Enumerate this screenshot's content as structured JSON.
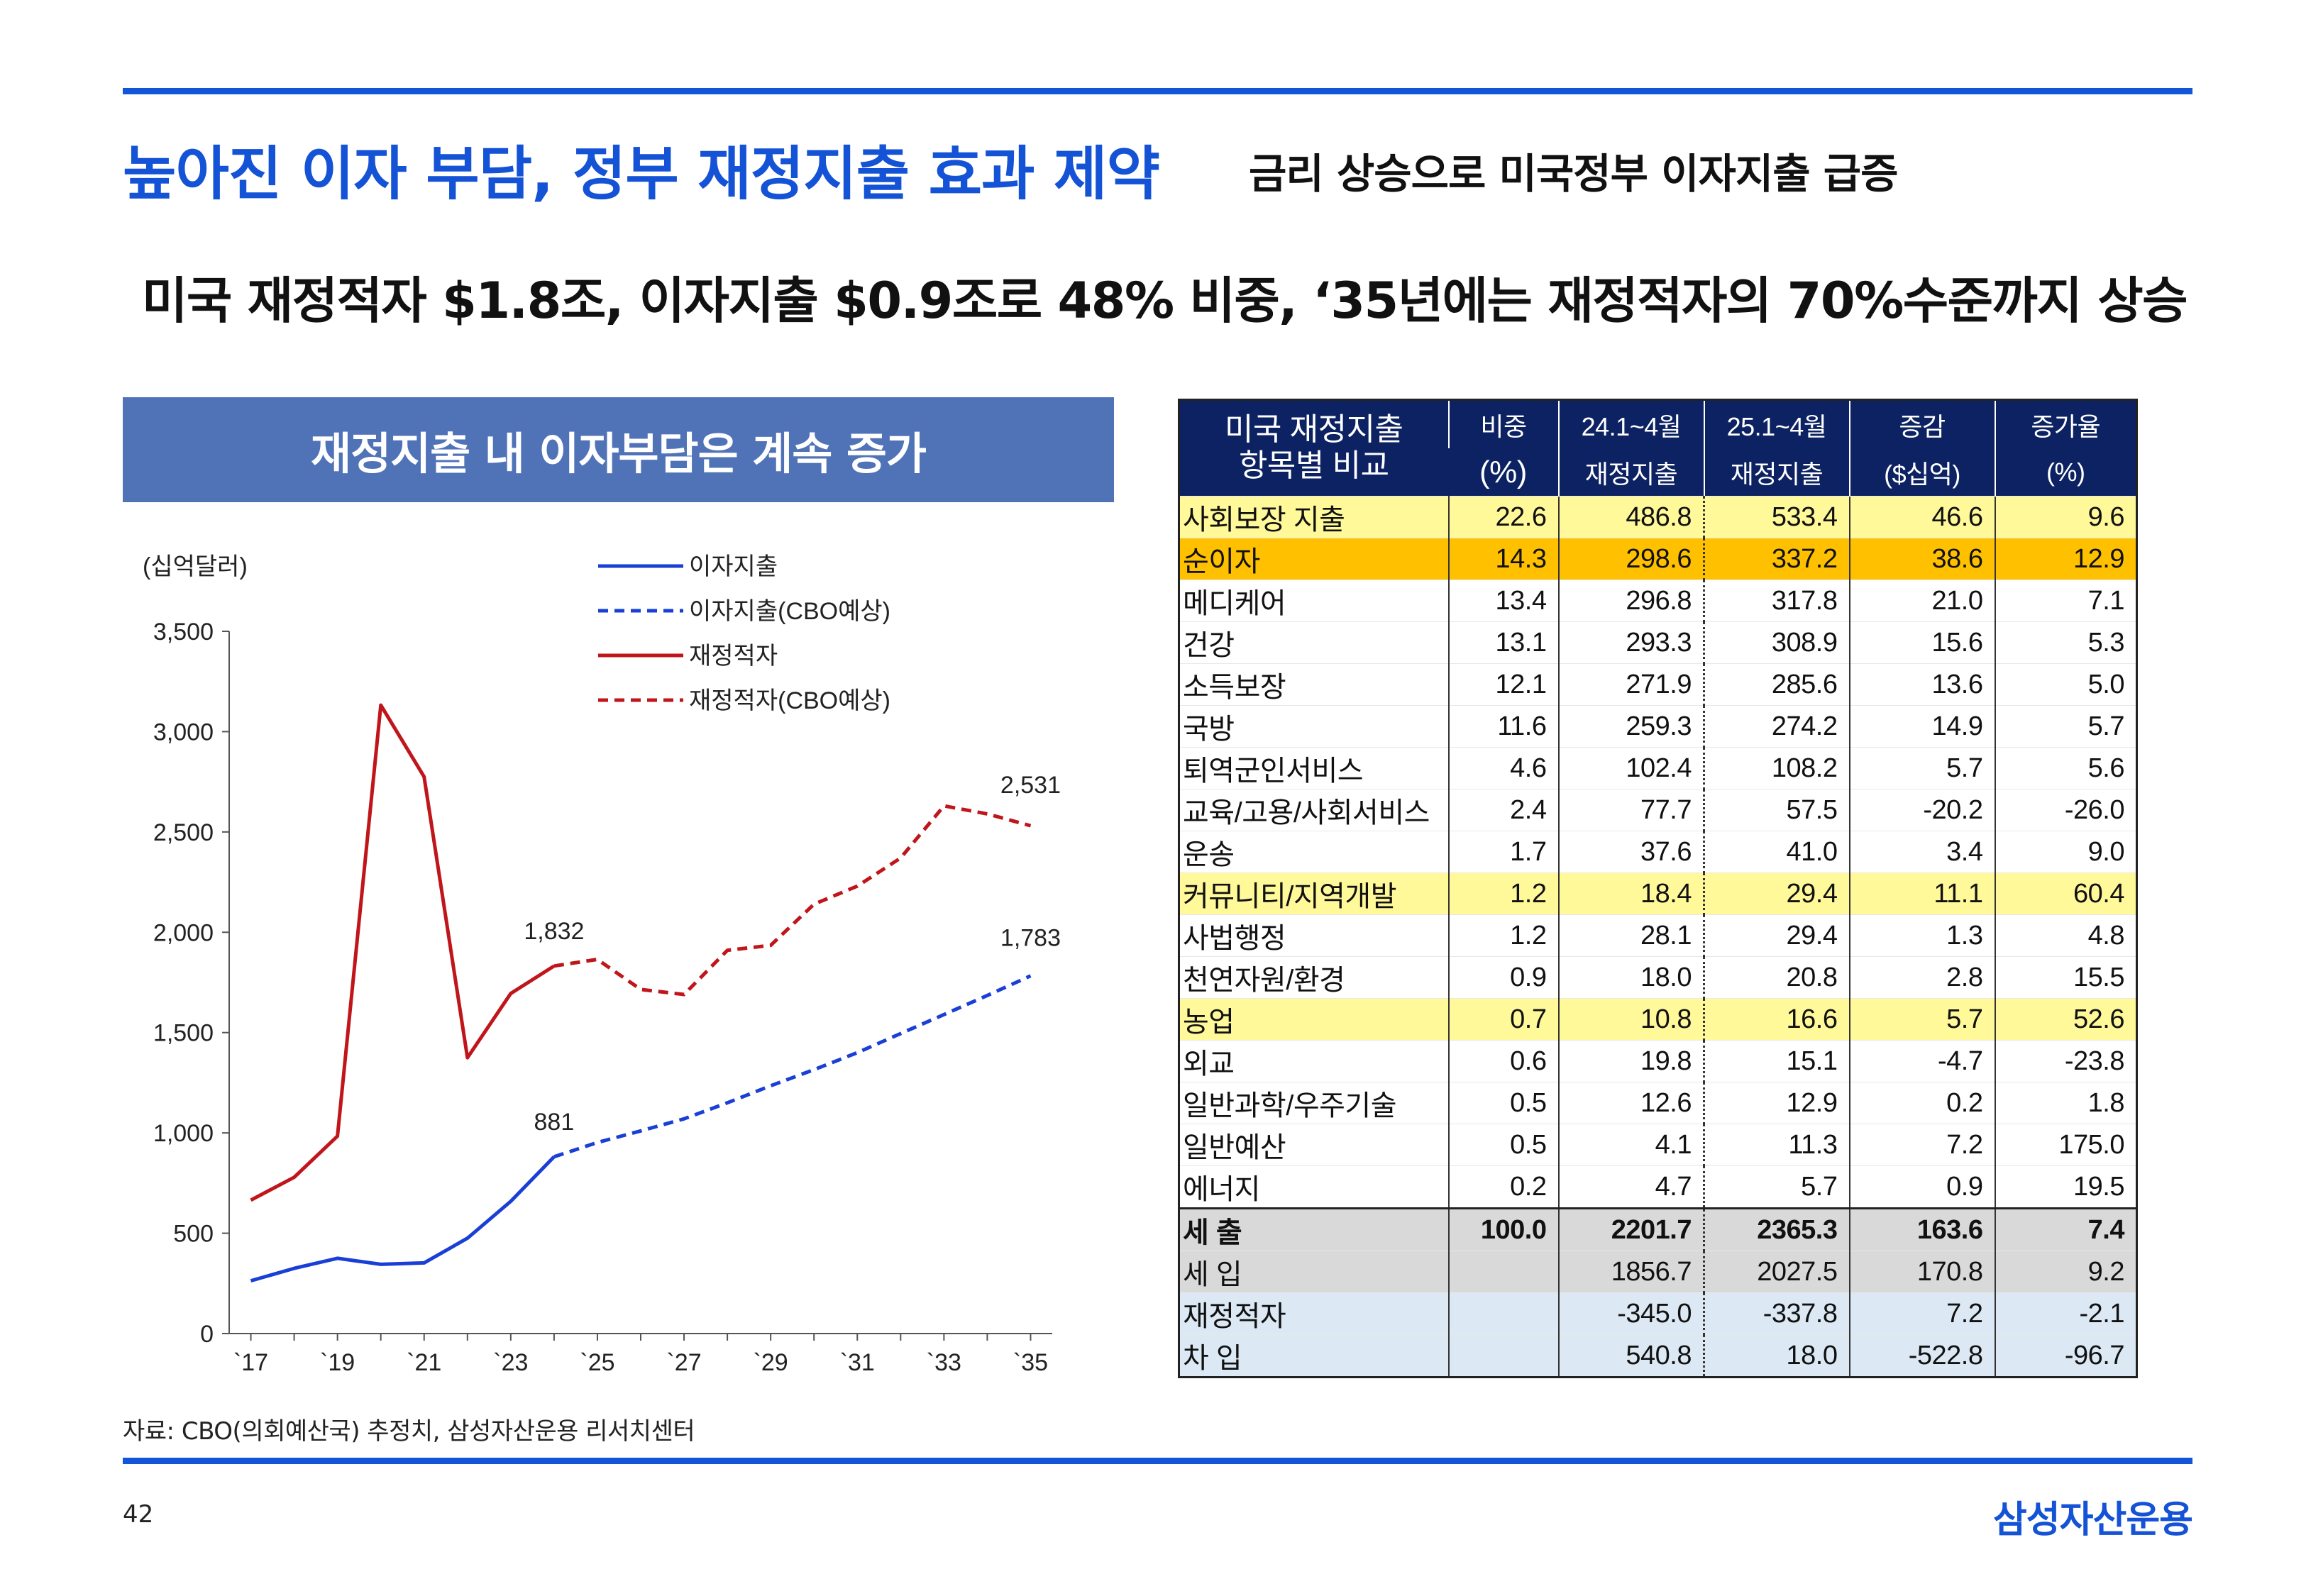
{
  "page": {
    "title": "높아진 이자 부담, 정부 재정지출 효과 제약",
    "subtitle": "금리 상승으로 미국정부 이자지출 급증",
    "headline": "미국 재정적자 $1.8조, 이자지출 $0.9조로 48% 비중, ‘35년에는 재정적자의 70%수준까지 상승",
    "chart_banner": "재정지출 내 이자부담은 계속 증가",
    "source_note": "자료: CBO(의회예산국) 추정치, 삼성자산운용 리서치센터",
    "page_number": "42",
    "brand": "삼성자산운용",
    "colors": {
      "accent": "#1452d6",
      "banner": "#5073b7",
      "table_header": "#0d2262",
      "interest": "#1a3fd6",
      "deficit": "#c0161b"
    }
  },
  "chart_data": {
    "type": "line",
    "unit_label": "(십억달러)",
    "ylim": [
      0,
      3500
    ],
    "y_ticks": [
      "0",
      "500",
      "1,000",
      "1,500",
      "2,000",
      "2,500",
      "3,000",
      "3,500"
    ],
    "x_tick_labels": [
      "`17",
      "`19",
      "`21",
      "`23",
      "`25",
      "`27",
      "`29",
      "`31",
      "`33",
      "`35"
    ],
    "x": [
      2017,
      2018,
      2019,
      2020,
      2021,
      2022,
      2023,
      2024,
      2025,
      2026,
      2027,
      2028,
      2029,
      2030,
      2031,
      2032,
      2033,
      2034,
      2035
    ],
    "legend_placement": "top-center",
    "series": [
      {
        "name": "이자지출",
        "style": "solid",
        "color": "#1a3fd6",
        "points": [
          [
            2017,
            263
          ],
          [
            2018,
            325
          ],
          [
            2019,
            375
          ],
          [
            2020,
            345
          ],
          [
            2021,
            352
          ],
          [
            2022,
            475
          ],
          [
            2023,
            659
          ],
          [
            2024,
            881
          ]
        ]
      },
      {
        "name": "이자지출(CBO예상)",
        "style": "dashed",
        "color": "#1a3fd6",
        "points": [
          [
            2024,
            881
          ],
          [
            2025,
            952
          ],
          [
            2026,
            1010
          ],
          [
            2027,
            1070
          ],
          [
            2028,
            1150
          ],
          [
            2029,
            1235
          ],
          [
            2030,
            1315
          ],
          [
            2031,
            1400
          ],
          [
            2032,
            1495
          ],
          [
            2033,
            1590
          ],
          [
            2034,
            1685
          ],
          [
            2035,
            1783
          ]
        ]
      },
      {
        "name": "재정적자",
        "style": "solid",
        "color": "#c0161b",
        "points": [
          [
            2017,
            665
          ],
          [
            2018,
            779
          ],
          [
            2019,
            984
          ],
          [
            2020,
            3132
          ],
          [
            2021,
            2775
          ],
          [
            2022,
            1375
          ],
          [
            2023,
            1695
          ],
          [
            2024,
            1832
          ]
        ]
      },
      {
        "name": "재정적자(CBO예상)",
        "style": "dashed",
        "color": "#c0161b",
        "points": [
          [
            2024,
            1832
          ],
          [
            2025,
            1865
          ],
          [
            2026,
            1715
          ],
          [
            2027,
            1690
          ],
          [
            2028,
            1910
          ],
          [
            2029,
            1935
          ],
          [
            2030,
            2140
          ],
          [
            2031,
            2230
          ],
          [
            2032,
            2370
          ],
          [
            2033,
            2630
          ],
          [
            2034,
            2590
          ],
          [
            2035,
            2531
          ]
        ]
      }
    ],
    "annotations": [
      {
        "text": "2,531",
        "x": 2035,
        "y": 2531
      },
      {
        "text": "1,832",
        "x": 2024,
        "y": 1832
      },
      {
        "text": "1,783",
        "x": 2035,
        "y": 1783
      },
      {
        "text": "881",
        "x": 2024,
        "y": 881
      }
    ]
  },
  "table": {
    "headers": {
      "item": [
        "미국 재정지출",
        "항목별 비교"
      ],
      "share": [
        "비중",
        "(%)"
      ],
      "y24": [
        "24.1~4월",
        "재정지출"
      ],
      "y25": [
        "25.1~4월",
        "재정지출"
      ],
      "change": [
        "증감",
        "($십억)"
      ],
      "growth": [
        "증가율",
        "(%)"
      ]
    },
    "rows": [
      {
        "item": "사회보장 지출",
        "share": "22.6",
        "y24": "486.8",
        "y25": "533.4",
        "change": "46.6",
        "growth": "9.6",
        "hl": "yellow"
      },
      {
        "item": "순이자",
        "share": "14.3",
        "y24": "298.6",
        "y25": "337.2",
        "change": "38.6",
        "growth": "12.9",
        "hl": "orange"
      },
      {
        "item": "메디케어",
        "share": "13.4",
        "y24": "296.8",
        "y25": "317.8",
        "change": "21.0",
        "growth": "7.1",
        "hl": ""
      },
      {
        "item": "건강",
        "share": "13.1",
        "y24": "293.3",
        "y25": "308.9",
        "change": "15.6",
        "growth": "5.3",
        "hl": ""
      },
      {
        "item": "소득보장",
        "share": "12.1",
        "y24": "271.9",
        "y25": "285.6",
        "change": "13.6",
        "growth": "5.0",
        "hl": ""
      },
      {
        "item": "국방",
        "share": "11.6",
        "y24": "259.3",
        "y25": "274.2",
        "change": "14.9",
        "growth": "5.7",
        "hl": ""
      },
      {
        "item": "퇴역군인서비스",
        "share": "4.6",
        "y24": "102.4",
        "y25": "108.2",
        "change": "5.7",
        "growth": "5.6",
        "hl": ""
      },
      {
        "item": "교육/고용/사회서비스",
        "share": "2.4",
        "y24": "77.7",
        "y25": "57.5",
        "change": "-20.2",
        "growth": "-26.0",
        "hl": ""
      },
      {
        "item": "운송",
        "share": "1.7",
        "y24": "37.6",
        "y25": "41.0",
        "change": "3.4",
        "growth": "9.0",
        "hl": ""
      },
      {
        "item": "커뮤니티/지역개발",
        "share": "1.2",
        "y24": "18.4",
        "y25": "29.4",
        "change": "11.1",
        "growth": "60.4",
        "hl": "yellow"
      },
      {
        "item": "사법행정",
        "share": "1.2",
        "y24": "28.1",
        "y25": "29.4",
        "change": "1.3",
        "growth": "4.8",
        "hl": ""
      },
      {
        "item": "천연자원/환경",
        "share": "0.9",
        "y24": "18.0",
        "y25": "20.8",
        "change": "2.8",
        "growth": "15.5",
        "hl": ""
      },
      {
        "item": "농업",
        "share": "0.7",
        "y24": "10.8",
        "y25": "16.6",
        "change": "5.7",
        "growth": "52.6",
        "hl": "yellow"
      },
      {
        "item": "외교",
        "share": "0.6",
        "y24": "19.8",
        "y25": "15.1",
        "change": "-4.7",
        "growth": "-23.8",
        "hl": ""
      },
      {
        "item": "일반과학/우주기술",
        "share": "0.5",
        "y24": "12.6",
        "y25": "12.9",
        "change": "0.2",
        "growth": "1.8",
        "hl": ""
      },
      {
        "item": "일반예산",
        "share": "0.5",
        "y24": "4.1",
        "y25": "11.3",
        "change": "7.2",
        "growth": "175.0",
        "hl": ""
      },
      {
        "item": "에너지",
        "share": "0.2",
        "y24": "4.7",
        "y25": "5.7",
        "change": "0.9",
        "growth": "19.5",
        "hl": ""
      },
      {
        "item": "세      출",
        "share": "100.0",
        "y24": "2201.7",
        "y25": "2365.3",
        "change": "163.6",
        "growth": "7.4",
        "hl": "gray-bold"
      },
      {
        "item": "세      입",
        "share": "",
        "y24": "1856.7",
        "y25": "2027.5",
        "change": "170.8",
        "growth": "9.2",
        "hl": "gray"
      },
      {
        "item": "재정적자",
        "share": "",
        "y24": "-345.0",
        "y25": "-337.8",
        "change": "7.2",
        "growth": "-2.1",
        "hl": "blue"
      },
      {
        "item": "차      입",
        "share": "",
        "y24": "540.8",
        "y25": "18.0",
        "change": "-522.8",
        "growth": "-96.7",
        "hl": "blue"
      }
    ]
  }
}
